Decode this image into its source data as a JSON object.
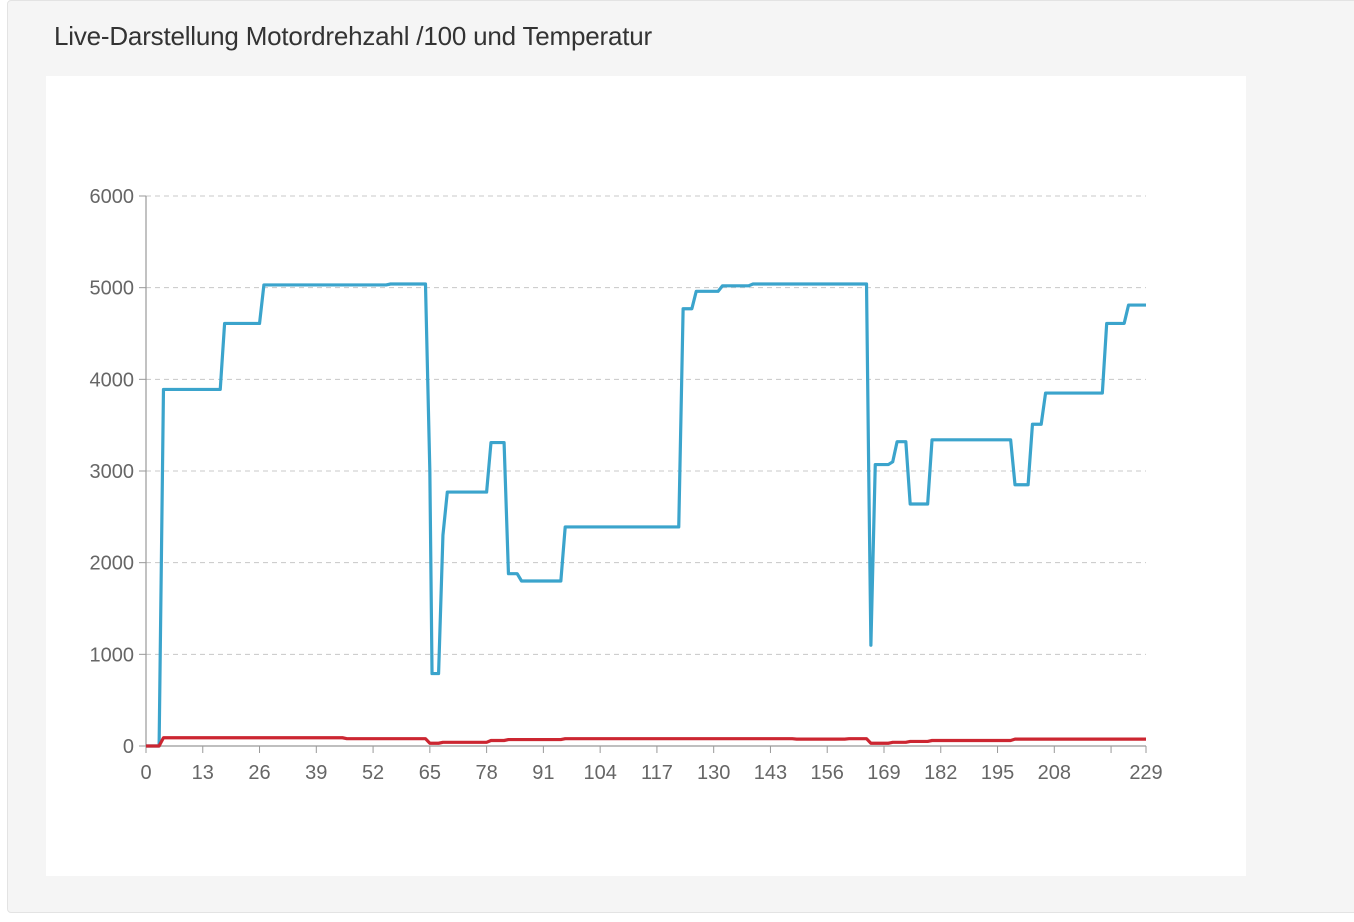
{
  "panel": {
    "title": "Live-Darstellung Motordrehzahl /100 und Temperatur"
  },
  "chart_data": {
    "type": "line",
    "title": "",
    "xlabel": "",
    "ylabel": "",
    "xlim": [
      0,
      229
    ],
    "ylim": [
      0,
      6000
    ],
    "grid": true,
    "x_ticks": [
      0,
      13,
      26,
      39,
      52,
      65,
      78,
      91,
      104,
      117,
      130,
      143,
      156,
      169,
      182,
      195,
      208,
      229
    ],
    "y_ticks": [
      0,
      1000,
      2000,
      3000,
      4000,
      5000,
      6000
    ],
    "series": [
      {
        "color": "#3ba4cc",
        "points": [
          [
            0,
            0
          ],
          [
            3,
            0
          ],
          [
            4,
            3890
          ],
          [
            17,
            3890
          ],
          [
            18,
            4610
          ],
          [
            26,
            4610
          ],
          [
            27,
            5030
          ],
          [
            45,
            5030
          ],
          [
            55,
            5030
          ],
          [
            56,
            5040
          ],
          [
            64,
            5040
          ],
          [
            65,
            3000
          ],
          [
            65.5,
            790
          ],
          [
            67,
            790
          ],
          [
            68,
            2300
          ],
          [
            69,
            2770
          ],
          [
            78,
            2770
          ],
          [
            79,
            3310
          ],
          [
            82,
            3310
          ],
          [
            83,
            1880
          ],
          [
            85,
            1880
          ],
          [
            86,
            1800
          ],
          [
            95,
            1800
          ],
          [
            96,
            2390
          ],
          [
            122,
            2390
          ],
          [
            123,
            4770
          ],
          [
            125,
            4770
          ],
          [
            126,
            4960
          ],
          [
            131,
            4960
          ],
          [
            132,
            5020
          ],
          [
            138,
            5020
          ],
          [
            139,
            5040
          ],
          [
            165,
            5040
          ],
          [
            165.5,
            3000
          ],
          [
            166,
            1100
          ],
          [
            167,
            3070
          ],
          [
            170,
            3070
          ],
          [
            171,
            3100
          ],
          [
            172,
            3320
          ],
          [
            174,
            3320
          ],
          [
            175,
            2640
          ],
          [
            179,
            2640
          ],
          [
            180,
            3340
          ],
          [
            198,
            3340
          ],
          [
            199,
            2850
          ],
          [
            202,
            2850
          ],
          [
            203,
            3510
          ],
          [
            205,
            3510
          ],
          [
            206,
            3850
          ],
          [
            219,
            3850
          ],
          [
            220,
            4610
          ],
          [
            224,
            4610
          ],
          [
            225,
            4810
          ],
          [
            229,
            4810
          ]
        ]
      },
      {
        "color": "#cc2631",
        "points": [
          [
            0,
            0
          ],
          [
            3,
            0
          ],
          [
            4,
            90
          ],
          [
            45,
            90
          ],
          [
            46,
            80
          ],
          [
            64,
            80
          ],
          [
            65,
            30
          ],
          [
            67,
            30
          ],
          [
            68,
            40
          ],
          [
            78,
            40
          ],
          [
            79,
            60
          ],
          [
            82,
            60
          ],
          [
            83,
            70
          ],
          [
            95,
            70
          ],
          [
            96,
            80
          ],
          [
            148,
            80
          ],
          [
            149,
            75
          ],
          [
            160,
            75
          ],
          [
            161,
            80
          ],
          [
            165,
            80
          ],
          [
            166,
            30
          ],
          [
            170,
            30
          ],
          [
            171,
            40
          ],
          [
            174,
            40
          ],
          [
            175,
            50
          ],
          [
            179,
            50
          ],
          [
            180,
            60
          ],
          [
            198,
            60
          ],
          [
            199,
            75
          ],
          [
            229,
            75
          ]
        ]
      }
    ]
  }
}
